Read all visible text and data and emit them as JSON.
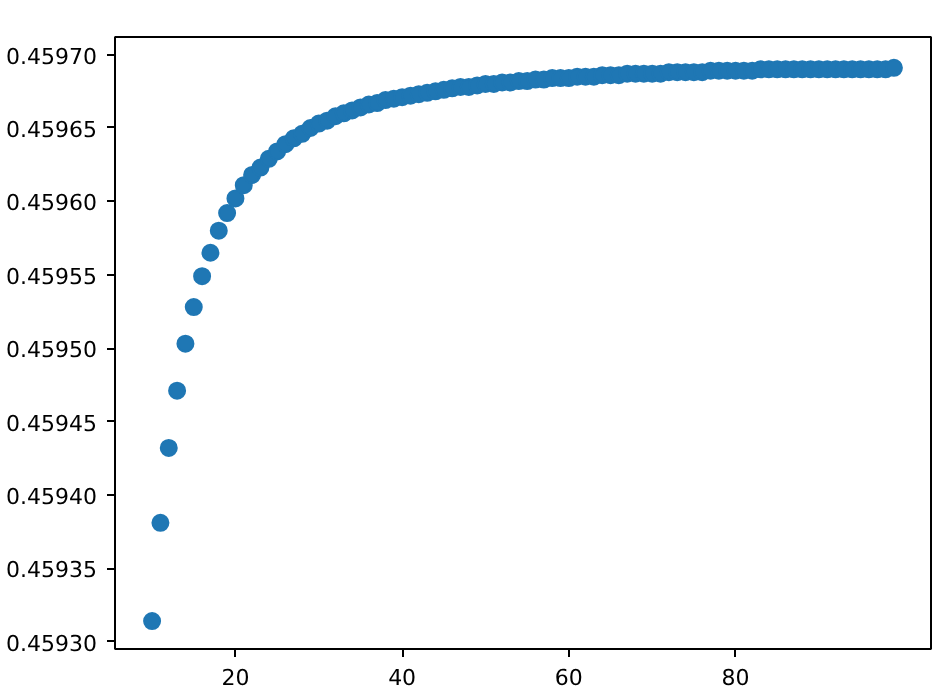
{
  "chart_data": {
    "type": "scatter",
    "marker": "circle",
    "grid": false,
    "x": [
      10,
      11,
      12,
      13,
      14,
      15,
      16,
      17,
      18,
      19,
      20,
      21,
      22,
      23,
      24,
      25,
      26,
      27,
      28,
      29,
      30,
      31,
      32,
      33,
      34,
      35,
      36,
      37,
      38,
      39,
      40,
      41,
      42,
      43,
      44,
      45,
      46,
      47,
      48,
      49,
      50,
      51,
      52,
      53,
      54,
      55,
      56,
      57,
      58,
      59,
      60,
      61,
      62,
      63,
      64,
      65,
      66,
      67,
      68,
      69,
      70,
      71,
      72,
      73,
      74,
      75,
      76,
      77,
      78,
      79,
      80,
      81,
      82,
      83,
      84,
      85,
      86,
      87,
      88,
      89,
      90,
      91,
      92,
      93,
      94,
      95,
      96,
      97,
      98,
      99
    ],
    "series": [
      {
        "color": "#1f77b4",
        "values": [
          0.459314,
          0.459381,
          0.459432,
          0.459471,
          0.459503,
          0.459528,
          0.459549,
          0.459565,
          0.45958,
          0.459592,
          0.459602,
          0.459611,
          0.459618,
          0.459623,
          0.459629,
          0.459634,
          0.459639,
          0.459643,
          0.459646,
          0.45965,
          0.459653,
          0.459655,
          0.459658,
          0.45966,
          0.459662,
          0.459664,
          0.459666,
          0.459667,
          0.459669,
          0.45967,
          0.459671,
          0.459672,
          0.459673,
          0.459674,
          0.459675,
          0.459676,
          0.459677,
          0.459678,
          0.459678,
          0.459679,
          0.45968,
          0.45968,
          0.459681,
          0.459681,
          0.459682,
          0.459682,
          0.459683,
          0.459683,
          0.459684,
          0.459684,
          0.459684,
          0.459685,
          0.459685,
          0.459685,
          0.459686,
          0.459686,
          0.459686,
          0.459687,
          0.459687,
          0.459687,
          0.459687,
          0.459687,
          0.459688,
          0.459688,
          0.459688,
          0.459688,
          0.459688,
          0.459689,
          0.459689,
          0.459689,
          0.459689,
          0.459689,
          0.459689,
          0.45969,
          0.45969,
          0.45969,
          0.45969,
          0.45969,
          0.45969,
          0.45969,
          0.45969,
          0.45969,
          0.45969,
          0.45969,
          0.45969,
          0.45969,
          0.45969,
          0.45969,
          0.45969,
          0.459691
        ]
      }
    ],
    "xlim": [
      5.55,
      103.45
    ],
    "ylim": [
      0.459295,
      0.459712
    ],
    "xticks": [
      20,
      40,
      60,
      80
    ],
    "yticks": [
      {
        "value": 0.4593,
        "label": "0.45930"
      },
      {
        "value": 0.45935,
        "label": "0.45935"
      },
      {
        "value": 0.4594,
        "label": "0.45940"
      },
      {
        "value": 0.45945,
        "label": "0.45945"
      },
      {
        "value": 0.4595,
        "label": "0.45950"
      },
      {
        "value": 0.45955,
        "label": "0.45955"
      },
      {
        "value": 0.4596,
        "label": "0.45960"
      },
      {
        "value": 0.45965,
        "label": "0.45965"
      },
      {
        "value": 0.4597,
        "label": "0.45970"
      }
    ]
  }
}
